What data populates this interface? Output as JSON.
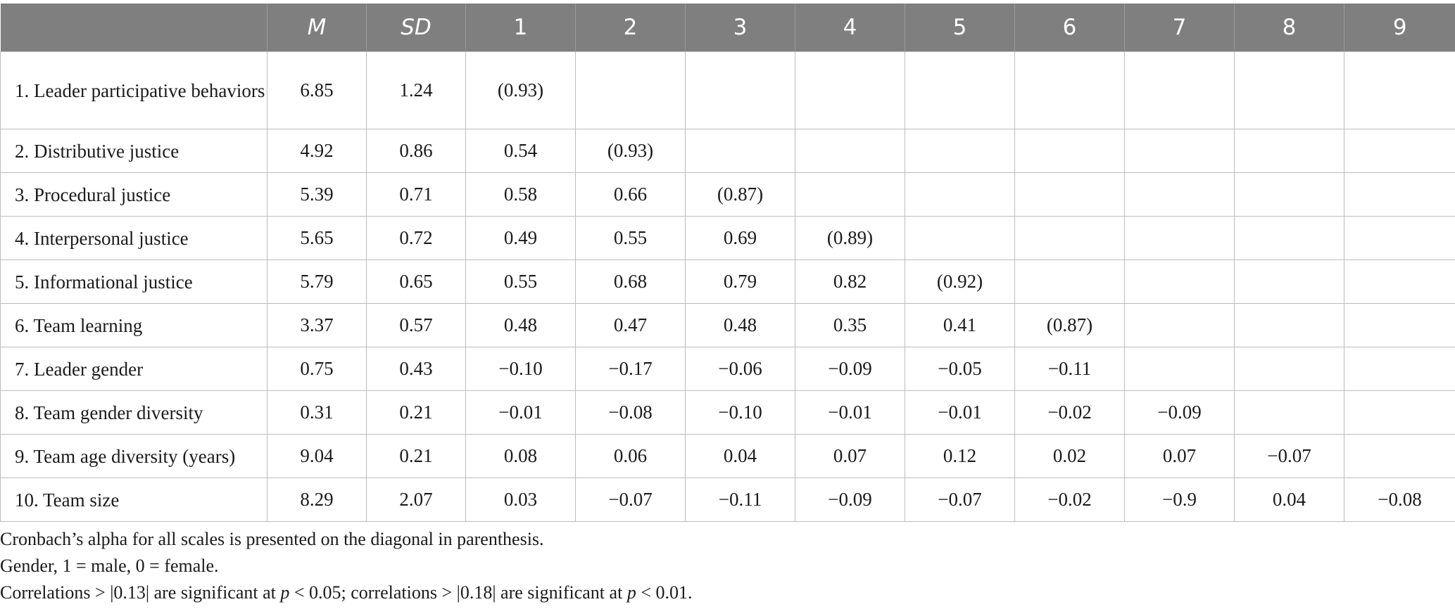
{
  "table": {
    "headers": [
      "",
      "M",
      "SD",
      "1",
      "2",
      "3",
      "4",
      "5",
      "6",
      "7",
      "8",
      "9"
    ],
    "rows": [
      [
        "1. Leader participative behaviors",
        "6.85",
        "1.24",
        "(0.93)",
        "",
        "",
        "",
        "",
        "",
        "",
        "",
        ""
      ],
      [
        "2. Distributive justice",
        "4.92",
        "0.86",
        "0.54",
        "(0.93)",
        "",
        "",
        "",
        "",
        "",
        "",
        ""
      ],
      [
        "3. Procedural justice",
        "5.39",
        "0.71",
        "0.58",
        "0.66",
        "(0.87)",
        "",
        "",
        "",
        "",
        "",
        ""
      ],
      [
        "4. Interpersonal justice",
        "5.65",
        "0.72",
        "0.49",
        "0.55",
        "0.69",
        "(0.89)",
        "",
        "",
        "",
        "",
        ""
      ],
      [
        "5. Informational justice",
        "5.79",
        "0.65",
        "0.55",
        "0.68",
        "0.79",
        "0.82",
        "(0.92)",
        "",
        "",
        "",
        ""
      ],
      [
        "6. Team learning",
        "3.37",
        "0.57",
        "0.48",
        "0.47",
        "0.48",
        "0.35",
        "0.41",
        "(0.87)",
        "",
        "",
        ""
      ],
      [
        "7. Leader gender",
        "0.75",
        "0.43",
        "−0.10",
        "−0.17",
        "−0.06",
        "−0.09",
        "−0.05",
        "−0.11",
        "",
        "",
        ""
      ],
      [
        "8. Team gender diversity",
        "0.31",
        "0.21",
        "−0.01",
        "−0.08",
        "−0.10",
        "−0.01",
        "−0.01",
        "−0.02",
        "−0.09",
        "",
        ""
      ],
      [
        "9. Team age diversity (years)",
        "9.04",
        "0.21",
        "0.08",
        "0.06",
        "0.04",
        "0.07",
        "0.12",
        "0.02",
        "0.07",
        "−0.07",
        ""
      ],
      [
        "10. Team size",
        "8.29",
        "2.07",
        "0.03",
        "−0.07",
        "−0.11",
        "−0.09",
        "−0.07",
        "−0.02",
        "−0.9",
        "0.04",
        "−0.08"
      ]
    ]
  },
  "notes": {
    "line1": "Cronbach’s alpha for all scales is presented on the diagonal in parenthesis.",
    "line2": "Gender, 1 = male, 0 = female.",
    "line3": {
      "a": "Correlations > |0.13| are significant at ",
      "p1": "p",
      "b": " < 0.05; correlations > |0.18| are significant at ",
      "p2": "p",
      "c": " < 0.01."
    }
  }
}
